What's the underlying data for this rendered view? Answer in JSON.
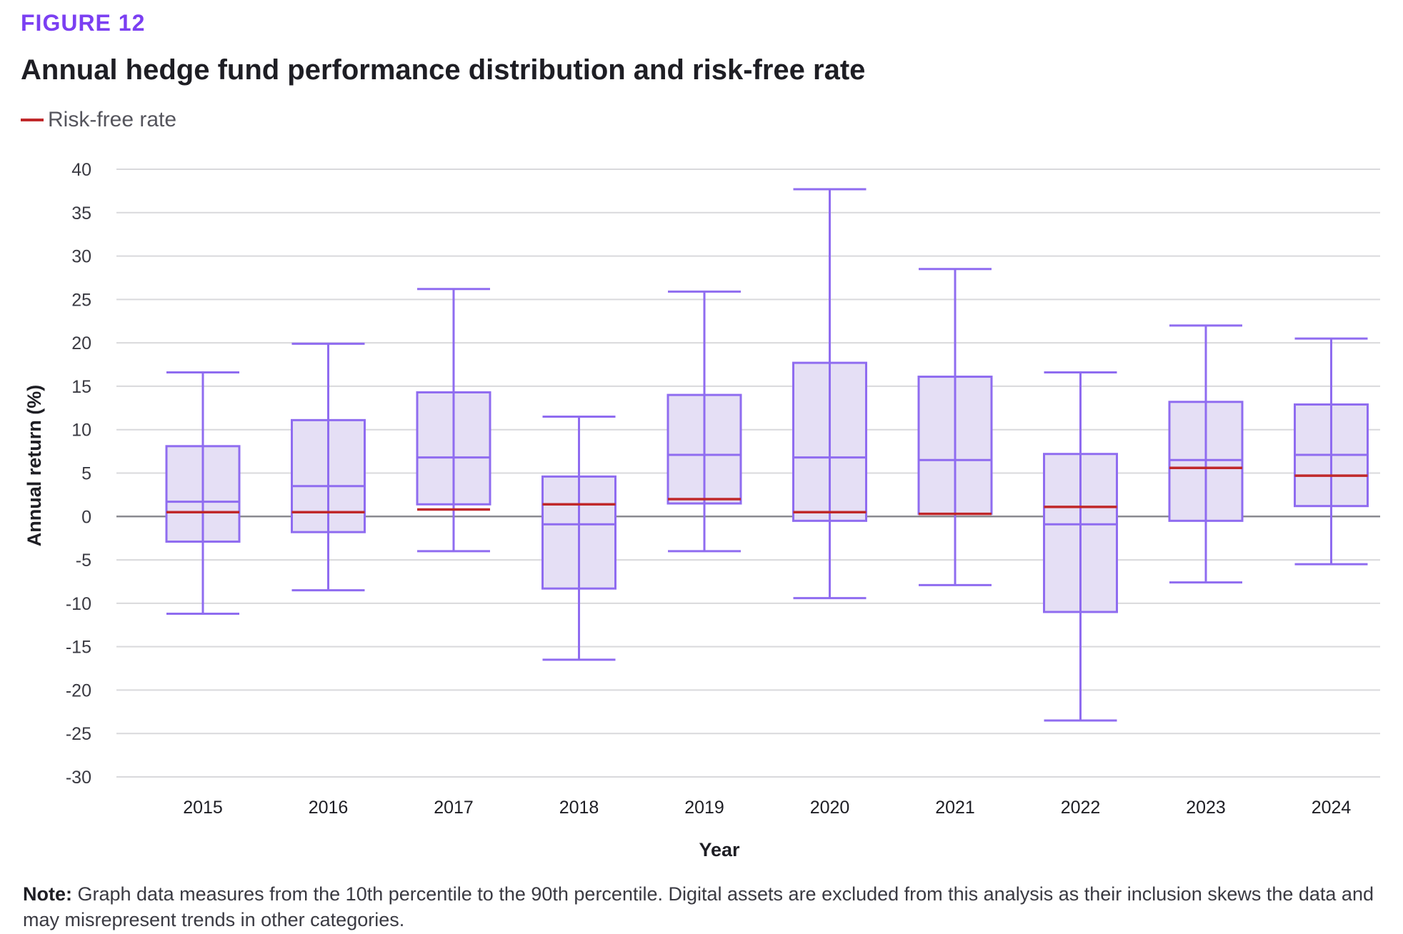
{
  "figure_label": "FIGURE 12",
  "chart_data": {
    "type": "box",
    "title": "Annual hedge fund performance distribution and risk-free rate",
    "xlabel": "Year",
    "ylabel": "Annual return (%)",
    "ylim": [
      -30,
      40
    ],
    "yticks": [
      40,
      35,
      30,
      25,
      20,
      15,
      10,
      5,
      0,
      -5,
      -10,
      -15,
      -20,
      -25,
      -30
    ],
    "grid": true,
    "legend": {
      "placement": "top-left",
      "entries": [
        {
          "name": "Risk-free rate",
          "color": "#c0282a"
        }
      ]
    },
    "categories": [
      "2015",
      "2016",
      "2017",
      "2018",
      "2019",
      "2020",
      "2021",
      "2022",
      "2023",
      "2024"
    ],
    "boxes": [
      {
        "year": "2015",
        "whisker_low": -11.2,
        "q1": -2.9,
        "median": 1.7,
        "q3": 8.1,
        "whisker_high": 16.6,
        "risk_free": 0.5
      },
      {
        "year": "2016",
        "whisker_low": -8.5,
        "q1": -1.8,
        "median": 3.5,
        "q3": 11.1,
        "whisker_high": 19.9,
        "risk_free": 0.5
      },
      {
        "year": "2017",
        "whisker_low": -4.0,
        "q1": 1.4,
        "median": 6.8,
        "q3": 14.3,
        "whisker_high": 26.2,
        "risk_free": 0.8
      },
      {
        "year": "2018",
        "whisker_low": -16.5,
        "q1": -8.3,
        "median": -0.9,
        "q3": 4.6,
        "whisker_high": 11.5,
        "risk_free": 1.4
      },
      {
        "year": "2019",
        "whisker_low": -4.0,
        "q1": 1.5,
        "median": 7.1,
        "q3": 14.0,
        "whisker_high": 25.9,
        "risk_free": 2.0
      },
      {
        "year": "2020",
        "whisker_low": -9.4,
        "q1": -0.5,
        "median": 6.8,
        "q3": 17.7,
        "whisker_high": 37.7,
        "risk_free": 0.5
      },
      {
        "year": "2021",
        "whisker_low": -7.9,
        "q1": 0.3,
        "median": 6.5,
        "q3": 16.1,
        "whisker_high": 28.5,
        "risk_free": 0.3
      },
      {
        "year": "2022",
        "whisker_low": -23.5,
        "q1": -11.0,
        "median": -0.9,
        "q3": 7.2,
        "whisker_high": 16.6,
        "risk_free": 1.1
      },
      {
        "year": "2023",
        "whisker_low": -7.6,
        "q1": -0.5,
        "median": 6.5,
        "q3": 13.2,
        "whisker_high": 22.0,
        "risk_free": 5.6
      },
      {
        "year": "2024",
        "whisker_low": -5.5,
        "q1": 1.2,
        "median": 7.1,
        "q3": 12.9,
        "whisker_high": 20.5,
        "risk_free": 4.7
      }
    ]
  },
  "colors": {
    "accent": "#7b3ff2",
    "box_stroke": "#8f6cf0",
    "box_fill": "#e5dff5",
    "risk_free": "#c0282a",
    "grid": "#d9d9dc",
    "zero_line": "#8a8a90"
  },
  "note": {
    "label": "Note:",
    "text": " Graph data measures from the 10th percentile to the 90th percentile. Digital assets are excluded from this analysis as their inclusion skews the data and may misrepresent trends in other categories."
  }
}
